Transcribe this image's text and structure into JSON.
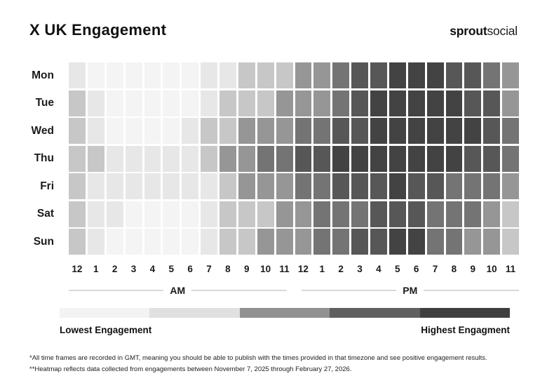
{
  "header": {
    "title": "X UK Engagement",
    "logo_bold": "sprout",
    "logo_light": "social"
  },
  "chart_data": {
    "type": "heatmap",
    "title": "X UK Engagement",
    "rows": [
      "Mon",
      "Tue",
      "Wed",
      "Thu",
      "Fri",
      "Sat",
      "Sun"
    ],
    "columns": [
      "12",
      "1",
      "2",
      "3",
      "4",
      "5",
      "6",
      "7",
      "8",
      "9",
      "10",
      "11",
      "12",
      "1",
      "2",
      "3",
      "4",
      "5",
      "6",
      "7",
      "8",
      "9",
      "10",
      "11"
    ],
    "column_groups": [
      {
        "label": "AM",
        "span": 12
      },
      {
        "label": "PM",
        "span": 12
      }
    ],
    "level_meaning": "1 = lowest engagement, 7 = highest engagement",
    "palette": {
      "1": "#f4f4f4",
      "2": "#e7e7e7",
      "3": "#c7c7c7",
      "4": "#969696",
      "5": "#747474",
      "6": "#575757",
      "7": "#434343"
    },
    "values": [
      [
        2,
        1,
        1,
        1,
        1,
        1,
        1,
        2,
        2,
        3,
        3,
        3,
        4,
        4,
        5,
        6,
        6,
        7,
        7,
        7,
        6,
        6,
        5,
        4
      ],
      [
        3,
        2,
        1,
        1,
        1,
        1,
        1,
        2,
        3,
        3,
        3,
        4,
        4,
        4,
        5,
        6,
        7,
        7,
        7,
        7,
        7,
        6,
        6,
        4
      ],
      [
        3,
        2,
        1,
        1,
        1,
        1,
        2,
        3,
        3,
        4,
        4,
        4,
        5,
        5,
        6,
        6,
        7,
        7,
        7,
        7,
        7,
        7,
        6,
        5
      ],
      [
        3,
        3,
        2,
        2,
        2,
        2,
        2,
        3,
        4,
        4,
        5,
        5,
        6,
        6,
        7,
        7,
        7,
        7,
        7,
        7,
        7,
        6,
        6,
        5
      ],
      [
        3,
        2,
        2,
        2,
        2,
        2,
        2,
        2,
        3,
        4,
        4,
        4,
        5,
        5,
        6,
        6,
        6,
        7,
        6,
        6,
        5,
        5,
        5,
        4
      ],
      [
        3,
        2,
        2,
        1,
        1,
        1,
        1,
        2,
        3,
        3,
        3,
        4,
        4,
        5,
        5,
        5,
        6,
        6,
        6,
        5,
        5,
        5,
        4,
        3
      ],
      [
        3,
        2,
        1,
        1,
        1,
        1,
        1,
        2,
        3,
        3,
        4,
        4,
        4,
        5,
        5,
        6,
        6,
        7,
        7,
        5,
        5,
        4,
        4,
        3
      ]
    ]
  },
  "legend": {
    "colors": [
      "#f3f3f3",
      "#e0e0e0",
      "#919191",
      "#5f5f5f",
      "#3f3f3f"
    ],
    "low_label": "Lowest Engagement",
    "high_label": "Highest Engagment"
  },
  "footnotes": [
    "*All time frames are recorded in GMT, meaning you should be able to publish with the times provided in that timezone and see positive engagement results.",
    "**Heatmap reflects data collected from engagements between November 7, 2025 through February 27, 2026."
  ]
}
